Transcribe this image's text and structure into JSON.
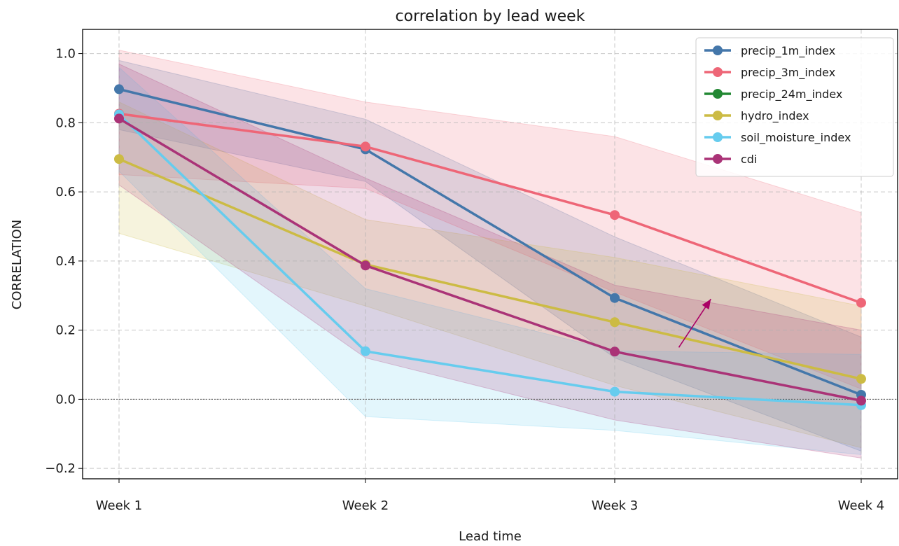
{
  "chart_data": {
    "type": "line",
    "title": "correlation by lead week",
    "xlabel": "Lead time",
    "ylabel": "CORRELATION",
    "categories": [
      "Week 1",
      "Week 2",
      "Week 3",
      "Week 4"
    ],
    "ylim": [
      -0.23,
      1.07
    ],
    "yticks": [
      -0.2,
      0.0,
      0.2,
      0.4,
      0.6,
      0.8,
      1.0
    ],
    "ytick_labels": [
      "−0.2",
      "0.0",
      "0.2",
      "0.4",
      "0.6",
      "0.8",
      "1.0"
    ],
    "grid": true,
    "legend_position": "top-right",
    "reference_line": 0.0,
    "series": [
      {
        "name": "precip_1m_index",
        "color": "#4477aa",
        "values": [
          0.897,
          0.723,
          0.293,
          0.013
        ],
        "lower": [
          0.78,
          0.63,
          0.12,
          -0.15
        ],
        "upper": [
          0.98,
          0.81,
          0.47,
          0.18
        ]
      },
      {
        "name": "precip_3m_index",
        "color": "#ee6677",
        "values": [
          0.826,
          0.731,
          0.533,
          0.279
        ],
        "lower": [
          0.65,
          0.61,
          0.31,
          0.03
        ],
        "upper": [
          1.01,
          0.86,
          0.76,
          0.54
        ]
      },
      {
        "name": "precip_24m_index",
        "color": "#228833",
        "values": [
          null,
          null,
          null,
          null
        ],
        "lower": [
          null,
          null,
          null,
          null
        ],
        "upper": [
          null,
          null,
          null,
          null
        ]
      },
      {
        "name": "hydro_index",
        "color": "#ccbb44",
        "values": [
          0.695,
          0.39,
          0.223,
          0.059
        ],
        "lower": [
          0.48,
          0.27,
          0.04,
          -0.14
        ],
        "upper": [
          0.86,
          0.52,
          0.41,
          0.27
        ]
      },
      {
        "name": "soil_moisture_index",
        "color": "#66ccee",
        "values": [
          0.824,
          0.139,
          0.022,
          -0.017
        ],
        "lower": [
          0.66,
          -0.05,
          -0.09,
          -0.16
        ],
        "upper": [
          0.96,
          0.32,
          0.14,
          0.13
        ]
      },
      {
        "name": "cdi",
        "color": "#aa3377",
        "values": [
          0.812,
          0.387,
          0.138,
          -0.004
        ],
        "lower": [
          0.62,
          0.12,
          -0.06,
          -0.17
        ],
        "upper": [
          0.97,
          0.64,
          0.33,
          0.2
        ]
      }
    ],
    "annotations": [
      {
        "type": "arrow",
        "color": "#aa0066",
        "from": {
          "x": 2.26,
          "y": 0.15
        },
        "to": {
          "x": 2.39,
          "y": 0.29
        }
      }
    ]
  }
}
